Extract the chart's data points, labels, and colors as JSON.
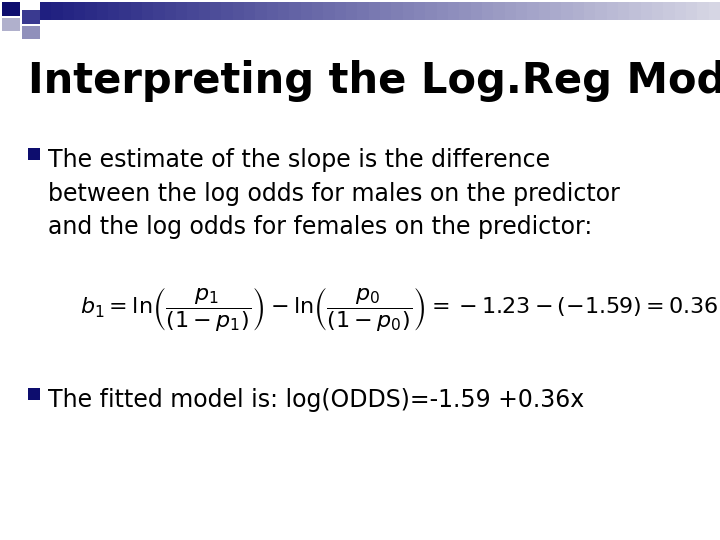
{
  "title": "Interpreting the Log.Reg Model",
  "bullet1_line1": "The estimate of the slope is the difference",
  "bullet1_line2": "between the log odds for males on the predictor",
  "bullet1_line3": "and the log odds for females on the predictor:",
  "bullet2": "The fitted model is: log(ODDS)=-1.59 +0.36x",
  "bg_color": "#ffffff",
  "title_color": "#000000",
  "bullet_color": "#000000",
  "square_dark": "#0d0d6e",
  "square_mid": "#7070aa",
  "square_light": "#b0b0cc",
  "header_bar_dark": "#1e1e7a",
  "header_bar_light": "#ccccdd",
  "title_fontsize": 30,
  "bullet_fontsize": 17,
  "formula_fontsize": 14
}
